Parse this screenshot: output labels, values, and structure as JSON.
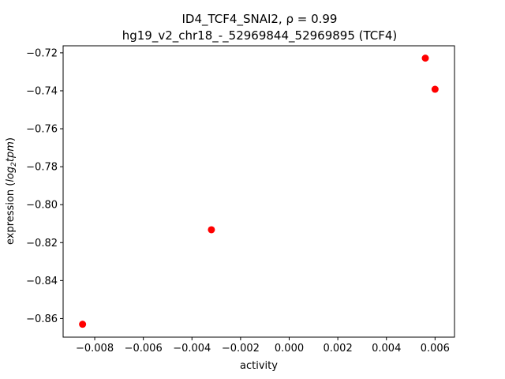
{
  "chart_data": {
    "type": "scatter",
    "title_line1": "ID4_TCF4_SNAI2, ρ = 0.99",
    "title_line2": "hg19_v2_chr18_-_52969844_52969895 (TCF4)",
    "xlabel": "activity",
    "ylabel_prefix": "expression (",
    "ylabel_math_log": "log",
    "ylabel_math_sub": "2",
    "ylabel_math_tpm": "tpm",
    "ylabel_suffix": ")",
    "xlim": [
      -0.0093,
      0.0068
    ],
    "ylim": [
      -0.8698,
      -0.7163
    ],
    "xticks": [
      -0.008,
      -0.006,
      -0.004,
      -0.002,
      0.0,
      0.002,
      0.004,
      0.006
    ],
    "xtick_labels": [
      "−0.008",
      "−0.006",
      "−0.004",
      "−0.002",
      "0.000",
      "0.002",
      "0.004",
      "0.006"
    ],
    "yticks": [
      -0.86,
      -0.84,
      -0.82,
      -0.8,
      -0.78,
      -0.76,
      -0.74,
      -0.72
    ],
    "ytick_labels": [
      "−0.86",
      "−0.84",
      "−0.82",
      "−0.80",
      "−0.78",
      "−0.76",
      "−0.74",
      "−0.72"
    ],
    "grid": false,
    "marker_color": "#ff0000",
    "points": [
      {
        "x": -0.0085,
        "y": -0.863
      },
      {
        "x": -0.0032,
        "y": -0.8132
      },
      {
        "x": 0.0056,
        "y": -0.7228
      },
      {
        "x": 0.006,
        "y": -0.7392
      }
    ]
  }
}
